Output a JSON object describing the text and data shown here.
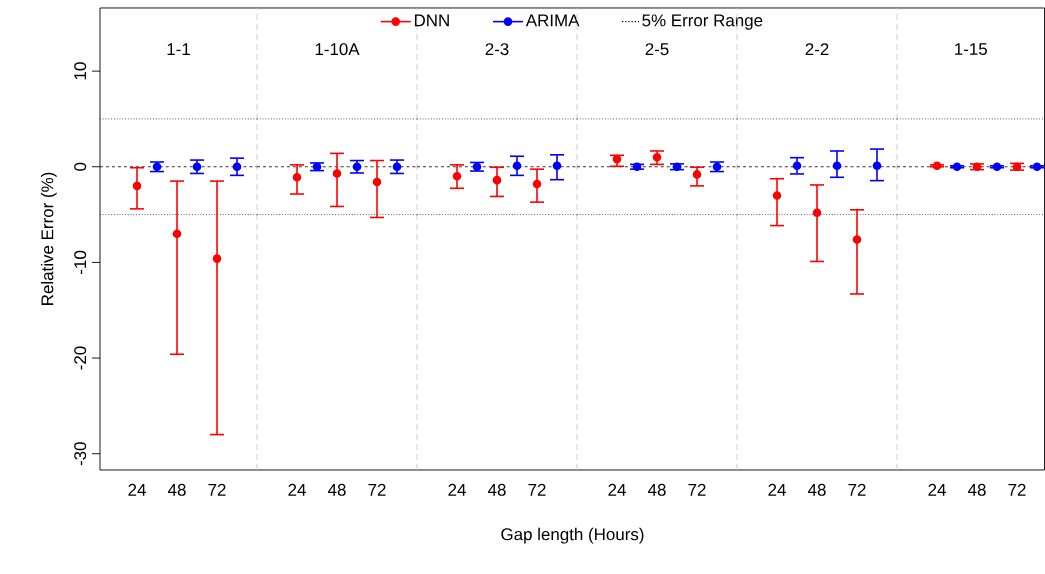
{
  "chart_data": [
    {
      "type": "scatter",
      "title": "1-1",
      "ylabel": "Relative Error (%)",
      "xlim": [
        1.8,
        96
      ],
      "ylim": [
        -31.7,
        16.6
      ],
      "xticks": [
        24,
        48,
        72
      ],
      "yticks": [
        -30,
        -20,
        -10,
        0,
        10
      ],
      "marker": "circle",
      "series": [
        {
          "color": "#ff0000",
          "x": [
            24,
            48,
            72
          ],
          "values": [
            -2.0,
            -7.0,
            -9.6
          ],
          "errors": [
            [
              -4.4,
              -0.1
            ],
            [
              -19.6,
              -1.5
            ],
            [
              -28.0,
              -1.5
            ]
          ]
        },
        {
          "color": "#0000ff",
          "x": [
            36,
            60,
            84
          ],
          "values": [
            0,
            0,
            0
          ],
          "errors": [
            [
              -0.5,
              0.5
            ],
            [
              -0.7,
              0.7
            ],
            [
              -0.9,
              0.9
            ]
          ]
        }
      ],
      "ref_lines": [
        {
          "axis": "y",
          "value": 5,
          "color": "#000000",
          "line_style": "dotted"
        },
        {
          "axis": "y",
          "value": -5,
          "color": "#000000",
          "line_style": "dotted"
        },
        {
          "axis": "y",
          "value": 0,
          "color": "#000000",
          "line_style": "dashed"
        }
      ]
    },
    {
      "type": "scatter",
      "title": "1-10A",
      "xlim": [
        0,
        96
      ],
      "ylim": [
        -31.7,
        16.6
      ],
      "xticks": [
        24,
        48,
        72
      ],
      "tick_labels": "x",
      "marker": "circle",
      "series": [
        {
          "color": "#ff0000",
          "x": [
            24,
            48,
            72
          ],
          "values": [
            -1.1,
            -0.7,
            -1.6
          ],
          "errors": [
            [
              -2.85,
              0.2
            ],
            [
              -4.15,
              1.4
            ],
            [
              -5.3,
              0.65
            ]
          ]
        },
        {
          "color": "#0000ff",
          "x": [
            36,
            60,
            84
          ],
          "values": [
            0,
            0,
            0
          ],
          "errors": [
            [
              -0.4,
              0.4
            ],
            [
              -0.65,
              0.65
            ],
            [
              -0.7,
              0.7
            ]
          ]
        }
      ],
      "ref_lines": [
        {
          "axis": "y",
          "value": 5,
          "color": "#000000",
          "line_style": "dotted"
        },
        {
          "axis": "y",
          "value": -5,
          "color": "#000000",
          "line_style": "dotted"
        },
        {
          "axis": "y",
          "value": 0,
          "color": "#000000",
          "line_style": "dashed"
        }
      ]
    },
    {
      "type": "scatter",
      "title": "2-3",
      "xlabel": "Gap length (Hours)",
      "xlim": [
        0,
        96
      ],
      "ylim": [
        -31.7,
        16.6
      ],
      "xticks": [
        24,
        48,
        72
      ],
      "tick_labels": "x",
      "marker": "circle",
      "legend": "top",
      "series": [
        {
          "name": "DNN",
          "color": "#ff0000",
          "x": [
            24,
            48,
            72
          ],
          "values": [
            -1.0,
            -1.4,
            -1.8
          ],
          "errors": [
            [
              -2.25,
              0.2
            ],
            [
              -3.1,
              -0.05
            ],
            [
              -3.7,
              -0.25
            ]
          ]
        },
        {
          "name": "ARIMA",
          "color": "#0000ff",
          "x": [
            36,
            60,
            84
          ],
          "values": [
            0,
            0.1,
            0.1
          ],
          "errors": [
            [
              -0.45,
              0.45
            ],
            [
              -0.9,
              1.1
            ],
            [
              -1.35,
              1.25
            ]
          ]
        }
      ],
      "ref_lines": [
        {
          "axis": "y",
          "value": 5,
          "label": "5% Error Range",
          "color": "#000000",
          "line_style": "dotted"
        },
        {
          "axis": "y",
          "value": -5,
          "color": "#000000",
          "line_style": "dotted"
        },
        {
          "axis": "y",
          "value": 0,
          "color": "#000000",
          "line_style": "dashed"
        }
      ]
    },
    {
      "type": "scatter",
      "title": "2-5",
      "xlim": [
        0,
        96
      ],
      "ylim": [
        -31.7,
        16.6
      ],
      "xticks": [
        24,
        48,
        72
      ],
      "tick_labels": "x",
      "marker": "circle",
      "series": [
        {
          "color": "#ff0000",
          "x": [
            24,
            48,
            72
          ],
          "values": [
            0.8,
            1.0,
            -0.8
          ],
          "errors": [
            [
              0.05,
              1.2
            ],
            [
              0.25,
              1.65
            ],
            [
              -2.0,
              -0.05
            ]
          ]
        },
        {
          "color": "#0000ff",
          "x": [
            36,
            60,
            84
          ],
          "values": [
            0,
            0,
            0
          ],
          "errors": [
            [
              -0.25,
              0.25
            ],
            [
              -0.3,
              0.3
            ],
            [
              -0.5,
              0.5
            ]
          ]
        }
      ],
      "ref_lines": [
        {
          "axis": "y",
          "value": 5,
          "color": "#000000",
          "line_style": "dotted"
        },
        {
          "axis": "y",
          "value": -5,
          "color": "#000000",
          "line_style": "dotted"
        },
        {
          "axis": "y",
          "value": 0,
          "color": "#000000",
          "line_style": "dashed"
        }
      ]
    },
    {
      "type": "scatter",
      "title": "2-2",
      "xlim": [
        0,
        96
      ],
      "ylim": [
        -31.7,
        16.6
      ],
      "xticks": [
        24,
        48,
        72
      ],
      "tick_labels": "x",
      "marker": "circle",
      "series": [
        {
          "color": "#ff0000",
          "x": [
            24,
            48,
            72
          ],
          "values": [
            -3.0,
            -4.8,
            -7.6
          ],
          "errors": [
            [
              -6.15,
              -1.25
            ],
            [
              -9.9,
              -1.9
            ],
            [
              -13.3,
              -4.5
            ]
          ]
        },
        {
          "color": "#0000ff",
          "x": [
            36,
            60,
            84
          ],
          "values": [
            0.1,
            0.1,
            0.1
          ],
          "errors": [
            [
              -0.75,
              0.95
            ],
            [
              -1.1,
              1.65
            ],
            [
              -1.45,
              1.85
            ]
          ]
        }
      ],
      "ref_lines": [
        {
          "axis": "y",
          "value": 5,
          "color": "#000000",
          "line_style": "dotted"
        },
        {
          "axis": "y",
          "value": -5,
          "color": "#000000",
          "line_style": "dotted"
        },
        {
          "axis": "y",
          "value": 0,
          "color": "#000000",
          "line_style": "dashed"
        }
      ]
    },
    {
      "type": "scatter",
      "title": "1-15",
      "xlim": [
        0,
        88.5
      ],
      "ylim": [
        -31.7,
        16.6
      ],
      "xticks": [
        24,
        48,
        72
      ],
      "tick_labels": "x",
      "marker": "circle",
      "series": [
        {
          "color": "#ff0000",
          "x": [
            24,
            48,
            72
          ],
          "values": [
            0.1,
            0,
            0
          ],
          "errors": [
            [
              0,
              0.2
            ],
            [
              -0.3,
              0.3
            ],
            [
              -0.35,
              0.35
            ]
          ]
        },
        {
          "color": "#0000ff",
          "x": [
            36,
            60,
            84
          ],
          "values": [
            0,
            0,
            0
          ],
          "errors": [
            [
              -0.1,
              0.1
            ],
            [
              -0.1,
              0.1
            ],
            [
              -0.1,
              0.1
            ]
          ]
        }
      ],
      "ref_lines": [
        {
          "axis": "y",
          "value": 5,
          "color": "#000000",
          "line_style": "dotted"
        },
        {
          "axis": "y",
          "value": -5,
          "color": "#000000",
          "line_style": "dotted"
        },
        {
          "axis": "y",
          "value": 0,
          "color": "#000000",
          "line_style": "dashed"
        }
      ]
    }
  ]
}
